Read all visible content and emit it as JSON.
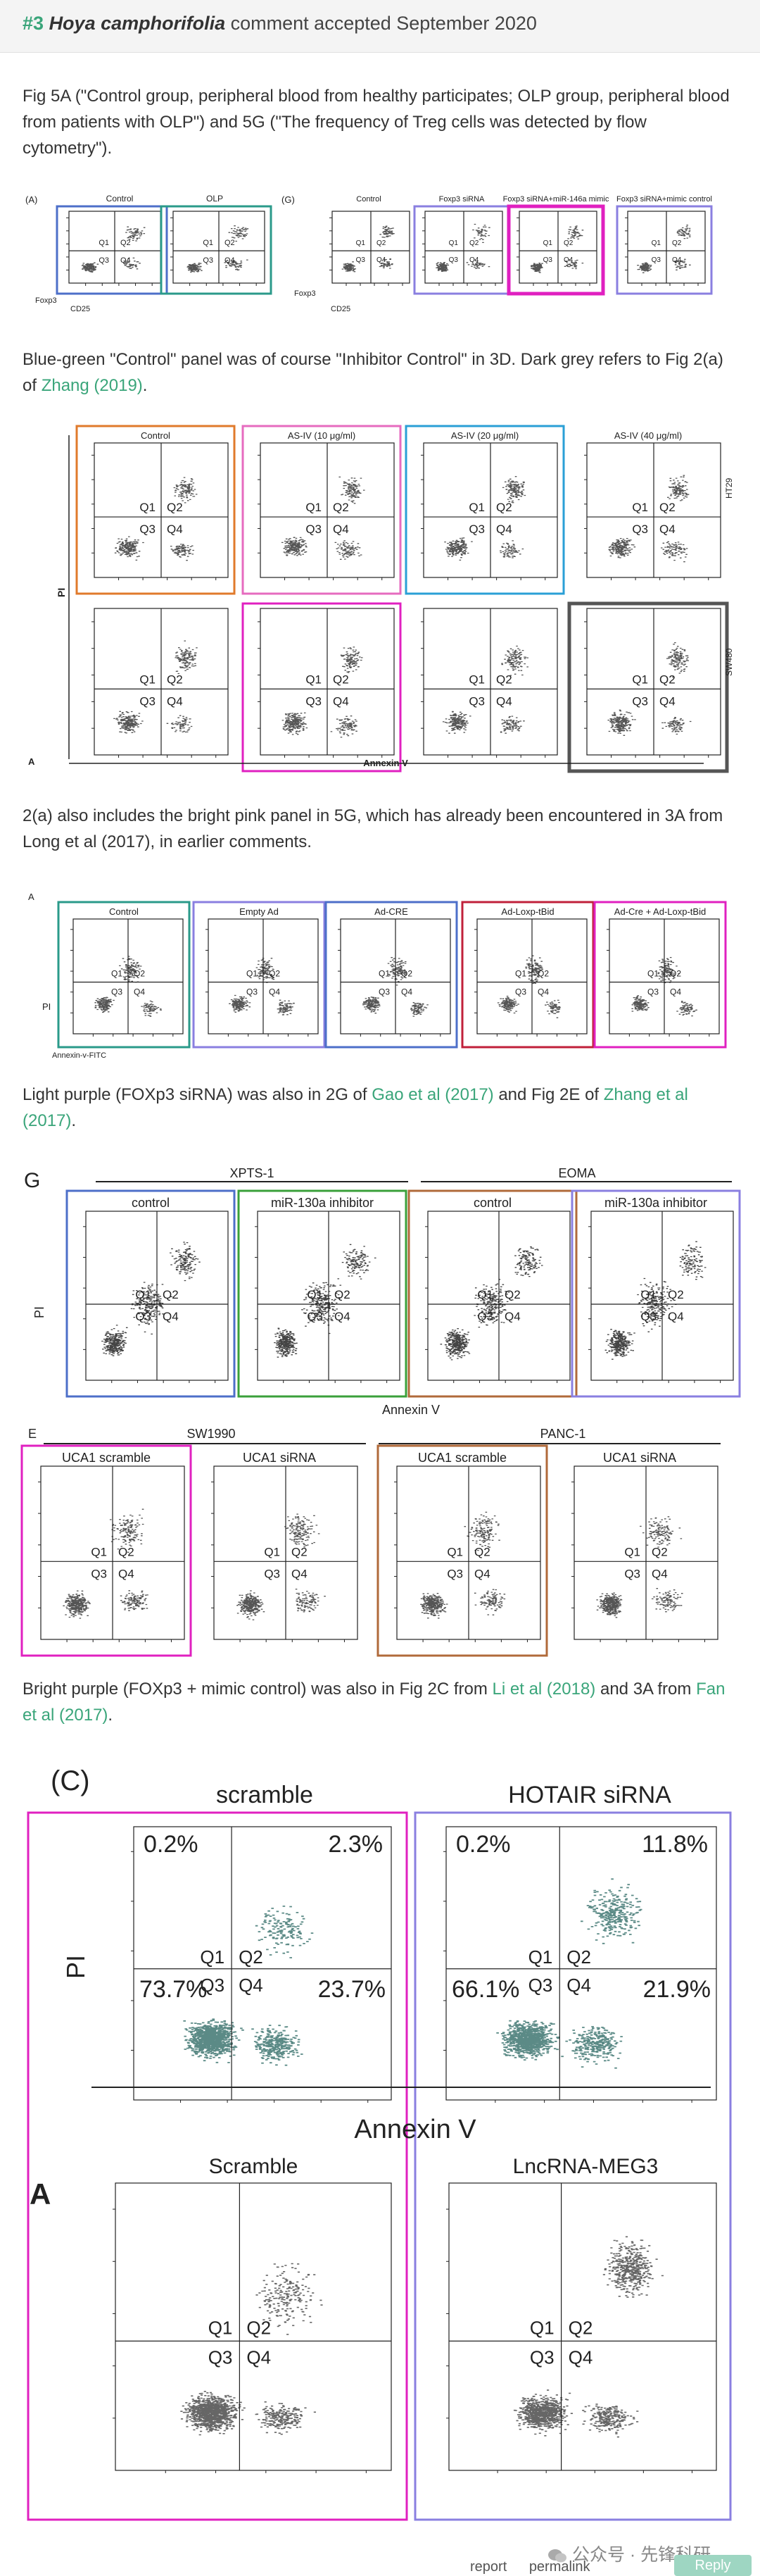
{
  "comment": {
    "number": "#3",
    "author": "Hoya camphorifolia",
    "status": "comment accepted September 2020"
  },
  "paragraphs": {
    "p1": "Fig 5A (\"Control group, peripheral blood from healthy participates; OLP group, peripheral blood from patients with OLP\") and 5G (\"The frequency of Treg cells was detected by flow cytometry\").",
    "p2_a": "Blue-green \"Control\" panel was of course \"Inhibitor Control\" in 3D. Dark grey refers to Fig 2(a) of ",
    "p2_link": "Zhang (2019)",
    "p2_b": ".",
    "p3": "2(a) also includes the bright pink panel in 5G, which has already been encountered in 3A from Long et al (2017), in earlier comments.",
    "p4_a": "Light purple (FOXp3 siRNA) was also in 2G of ",
    "p4_link1": "Gao et al (2017)",
    "p4_b": " and Fig 2E of ",
    "p4_link2": "Zhang et al (2017)",
    "p4_c": ".",
    "p5_a": "Bright purple (FOXp3 + mimic control) was also in Fig 2C from ",
    "p5_link1": "Li et al (2018)",
    "p5_b": " and 3A from ",
    "p5_link2": "Fan et al (2017)",
    "p5_c": "."
  },
  "fig1": {
    "left": {
      "label": "(A)",
      "titles": [
        "Control",
        "OLP"
      ],
      "ylabel": "Foxp3",
      "xlabel": "CD25"
    },
    "right": {
      "label": "(G)",
      "titles": [
        "Control",
        "Foxp3 siRNA",
        "Foxp3 siRNA+miR-146a mimic",
        "Foxp3 siRNA+mimic control"
      ],
      "ylabel": "Foxp3",
      "xlabel": "CD25"
    }
  },
  "fig2": {
    "panel_label": "A",
    "ylabel": "PI",
    "xlabel": "Annexin V",
    "column_titles": [
      "Control",
      "AS-IV (10 μg/ml)",
      "AS-IV (20 μg/ml)",
      "AS-IV (40 μg/ml)"
    ],
    "row_labels": [
      "HT29",
      "SW480"
    ]
  },
  "fig3": {
    "panel_label": "A",
    "ylabel": "PI",
    "xlabel": "Annexin-v-FITC",
    "column_titles": [
      "Control",
      "Empty Ad",
      "Ad-CRE",
      "Ad-Loxp-tBid",
      "Ad-Cre + Ad-Loxp-tBid"
    ]
  },
  "fig4": {
    "panel_label": "G",
    "groups": [
      "XPTS-1",
      "EOMA"
    ],
    "column_titles": [
      "control",
      "miR-130a inhibitor",
      "control",
      "miR-130a inhibitor"
    ],
    "ylabel": "PI",
    "xlabel": "Annexin V"
  },
  "fig5": {
    "panel_label": "E",
    "groups": [
      "SW1990",
      "PANC-1"
    ],
    "column_titles": [
      "UCA1 scramble",
      "UCA1 siRNA",
      "UCA1 scramble",
      "UCA1 siRNA"
    ]
  },
  "fig6": {
    "panel_label_top": "(C)",
    "panel_label_bottom": "A",
    "top_titles": [
      "scramble",
      "HOTAIR siRNA"
    ],
    "bottom_titles": [
      "Scramble",
      "LncRNA-MEG3"
    ],
    "ylabel": "PI",
    "xlabel": "Annexin V",
    "left_top_pct": {
      "q1": "0.2%",
      "q2": "2.3%",
      "q3": "73.7%",
      "q4": "23.7%"
    },
    "right_top_pct": {
      "q1": "0.2%",
      "q2": "11.8%",
      "q3": "66.1%",
      "q4": "21.9%"
    }
  },
  "quadrants": {
    "q1": "Q1",
    "q2": "Q2",
    "q3": "Q3",
    "q4": "Q4"
  },
  "footer": {
    "watermark": "公众号 · 先锋科研",
    "report": "report",
    "permalink": "permalink",
    "reply": "Reply"
  },
  "colors": {
    "accent": "#3aa57a",
    "blue": "#4d6fc9",
    "orange": "#e07a2b",
    "pink": "#e66bbf",
    "cyan": "#2a9fd6",
    "magenta": "#e020c0",
    "purple": "#8a7fe0",
    "teal": "#2a9a8a",
    "dark_grey": "#555555",
    "green": "#3aa03a",
    "brown": "#b06a3a",
    "crimson": "#c0203a"
  }
}
